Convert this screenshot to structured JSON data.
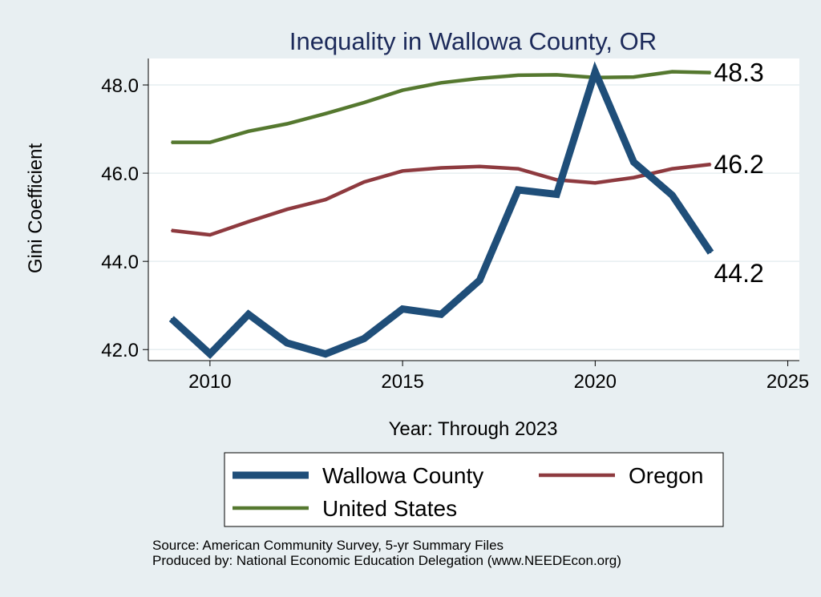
{
  "chart_data": {
    "type": "line",
    "title": "Inequality in Wallowa County, OR",
    "xlabel": "Year: Through 2023",
    "ylabel": "Gini Coefficient",
    "xlim": [
      2008.4,
      2025.3
    ],
    "ylim": [
      41.75,
      48.6
    ],
    "xticks": [
      2010,
      2015,
      2020,
      2025
    ],
    "yticks": [
      42.0,
      44.0,
      46.0,
      48.0
    ],
    "ytick_labels": [
      "42.0",
      "44.0",
      "46.0",
      "48.0"
    ],
    "grid": true,
    "legend_position": "bottom",
    "x": [
      2009,
      2010,
      2011,
      2012,
      2013,
      2014,
      2015,
      2016,
      2017,
      2018,
      2019,
      2020,
      2021,
      2022,
      2023
    ],
    "series": [
      {
        "name": "Wallowa County",
        "color": "#1f4e79",
        "values": [
          42.7,
          41.9,
          42.8,
          42.15,
          41.9,
          42.25,
          42.92,
          42.8,
          43.57,
          45.62,
          45.52,
          48.3,
          46.25,
          45.5,
          44.2
        ],
        "end_label": "44.2"
      },
      {
        "name": "Oregon",
        "color": "#8e3a3f",
        "values": [
          44.7,
          44.6,
          44.9,
          45.18,
          45.4,
          45.8,
          46.05,
          46.12,
          46.15,
          46.1,
          45.85,
          45.78,
          45.9,
          46.1,
          46.2
        ],
        "end_label": "46.2"
      },
      {
        "name": "United States",
        "color": "#55782f",
        "values": [
          46.7,
          46.7,
          46.95,
          47.12,
          47.35,
          47.6,
          47.88,
          48.05,
          48.15,
          48.22,
          48.23,
          48.17,
          48.18,
          48.3,
          48.28
        ],
        "end_label": "48.3"
      }
    ]
  },
  "footer": {
    "source": "Source: American Community Survey, 5-yr Summary Files",
    "producer": "Produced by: National Economic Education Delegation (www.NEEDEcon.org)"
  }
}
